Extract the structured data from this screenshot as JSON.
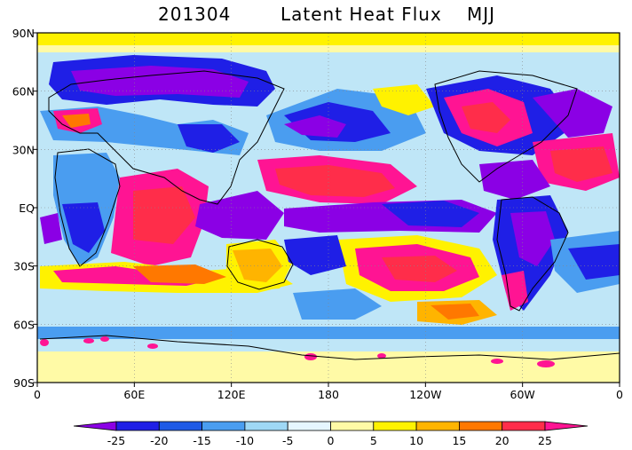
{
  "title": {
    "date": "201304",
    "variable": "Latent Heat Flux",
    "season": "MJJ"
  },
  "map": {
    "projection": "cylindrical equidistant",
    "lon_ticks": [
      "0",
      "60E",
      "120E",
      "180",
      "120W",
      "60W",
      "0"
    ],
    "lat_ticks": [
      "90N",
      "60N",
      "30N",
      "EQ",
      "30S",
      "60S",
      "90S"
    ],
    "grid": "dotted lines at tick positions"
  },
  "legend": {
    "ticks": [
      "-25",
      "-20",
      "-15",
      "-10",
      "-5",
      "0",
      "5",
      "10",
      "15",
      "20",
      "25"
    ],
    "colors": [
      "#8b00e5",
      "#1f1fe6",
      "#1e5ae6",
      "#4a9df0",
      "#9fd8f5",
      "#e6f6ff",
      "#fffaa6",
      "#fff200",
      "#ffb400",
      "#ff7800",
      "#ff2d4a",
      "#ff1493"
    ],
    "extend": "both"
  }
}
